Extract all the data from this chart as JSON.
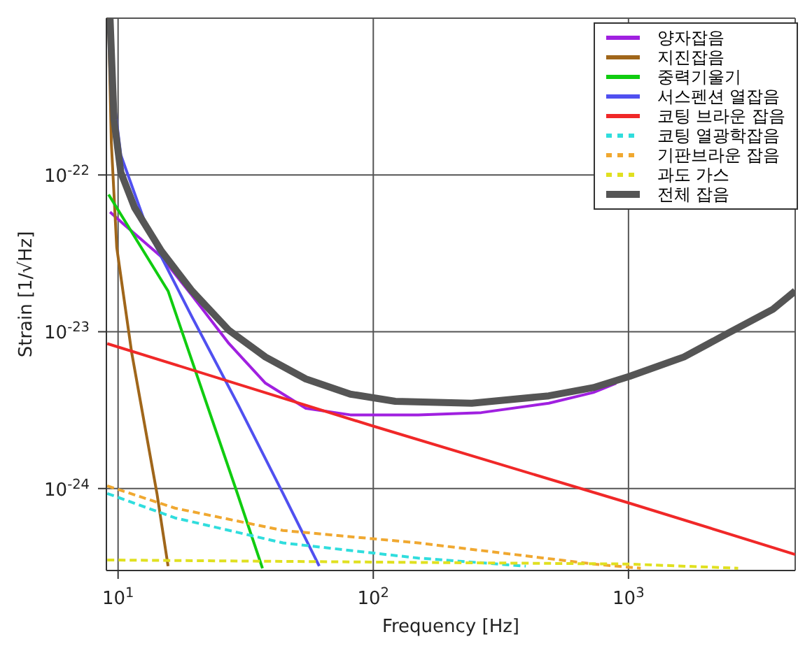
{
  "chart_data": {
    "type": "line",
    "xlabel": "Frequency [Hz]",
    "ylabel": "Strain [1/√Hz]",
    "log": "xy",
    "grid": true,
    "legend": "top right",
    "xlim": [
      9,
      4500
    ],
    "ylim": [
      3e-25,
      1e-21
    ],
    "xticks": [
      {
        "value": 10,
        "label": "10$^{1}$"
      },
      {
        "value": 100,
        "label": "10$^{2}$"
      },
      {
        "value": 1000,
        "label": "10$^{3}$"
      }
    ],
    "yticks": [
      {
        "value": 1e-24,
        "label": "10$^{-24}$"
      },
      {
        "value": 1e-23,
        "label": "10$^{-23}$"
      },
      {
        "value": 1e-22,
        "label": "10$^{-22}$"
      }
    ],
    "series": [
      {
        "name": "양자잡음",
        "color": "#a020e0",
        "x": [
          9.3,
          10.6,
          14.8,
          19.5,
          27.2,
          37.8,
          54.4,
          81.3,
          150,
          265,
          487,
          728,
          895
        ],
        "values": [
          5.8e-23,
          4.8e-23,
          3e-23,
          1.7e-23,
          8.4e-24,
          4.7e-24,
          3.25e-24,
          2.95e-24,
          2.95e-24,
          3.05e-24,
          3.5e-24,
          4.1e-24,
          4.7e-24
        ]
      },
      {
        "name": "지진잡음",
        "color": "#a0661a",
        "x": [
          9.18,
          9.41,
          9.88,
          11.3,
          14.2,
          15.7
        ],
        "values": [
          1e-21,
          1.6e-22,
          3.45e-23,
          7.4e-24,
          9.3e-25,
          3.2e-25
        ]
      },
      {
        "name": "중력기울기",
        "color": "#10cc10",
        "x": [
          9.18,
          15.7,
          28.9,
          36.8
        ],
        "values": [
          7.5e-23,
          1.82e-23,
          1e-24,
          3.1e-25
        ]
      },
      {
        "name": "서스펜션 열잡음",
        "color": "#5050f0",
        "x": [
          9.53,
          10.25,
          13.1,
          19.5,
          29.6,
          44.3,
          61.4
        ],
        "values": [
          3.5e-22,
          1.34e-22,
          4.4e-23,
          1.24e-23,
          3.4e-24,
          9.3e-25,
          3.2e-25
        ]
      },
      {
        "name": "코팅 브라운 잡음",
        "color": "#f02828",
        "x": [
          9.07,
          100,
          1000,
          4500
        ],
        "values": [
          8.4e-24,
          2.5e-24,
          8.1e-25,
          3.8e-25
        ]
      },
      {
        "name": "코팅 열광학잡음",
        "color": "#30dddd",
        "line_style": "dashed",
        "x": [
          9.07,
          16.7,
          44.3,
          150,
          396
        ],
        "values": [
          9.3e-25,
          6.5e-25,
          4.5e-25,
          3.6e-25,
          3.2e-25
        ]
      },
      {
        "name": "기판브라운 잡음",
        "color": "#f0a830",
        "line_style": "dashed",
        "x": [
          9.07,
          16.7,
          44.3,
          150,
          728,
          1117
        ],
        "values": [
          1.04e-24,
          7.5e-25,
          5.4e-25,
          4.5e-25,
          3.3e-25,
          3.1e-25
        ]
      },
      {
        "name": "과도 가스",
        "color": "#e0e020",
        "line_style": "dashed",
        "x": [
          9.07,
          1000,
          2690
        ],
        "values": [
          3.5e-25,
          3.3e-25,
          3.1e-25
        ]
      },
      {
        "name": "전체 잡음",
        "color": "#555555",
        "x": [
          9.3,
          9.64,
          10.25,
          11.6,
          14.8,
          19.5,
          27.2,
          37.8,
          54.4,
          81.3,
          122,
          243,
          487,
          728,
          1010,
          1648,
          2460,
          3680,
          4500
        ],
        "values": [
          1e-21,
          2.25e-22,
          1.04e-22,
          6.2e-23,
          3.26e-23,
          1.82e-23,
          1.02e-23,
          6.9e-24,
          5e-24,
          4e-24,
          3.6e-24,
          3.5e-24,
          3.9e-24,
          4.4e-24,
          5.2e-24,
          6.9e-24,
          9.8e-24,
          1.39e-23,
          1.82e-23
        ]
      }
    ]
  }
}
